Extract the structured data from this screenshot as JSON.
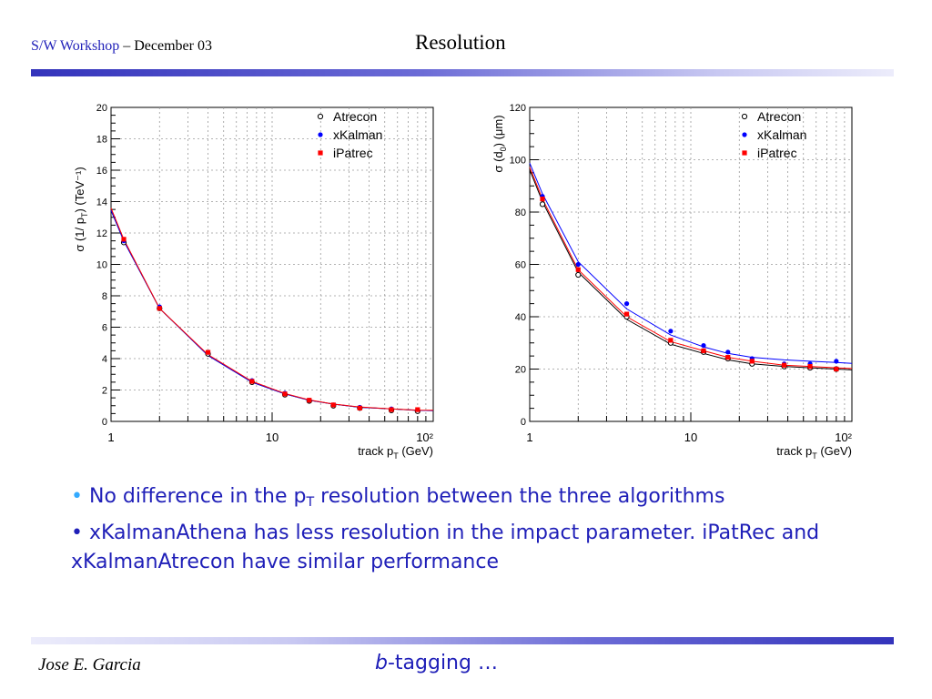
{
  "header": {
    "workshop": "S/W Workshop",
    "date": "– December 03",
    "title": "Resolution"
  },
  "chart_data": [
    {
      "type": "scatter",
      "ylabel_pre": "σ (1/ p",
      "ylabel_sub": "T",
      "ylabel_post": ") (TeV⁻¹)",
      "xlabel_pre": "track p",
      "xlabel_sub": "T",
      "xlabel_post": " (GeV)",
      "xscale": "log",
      "xlim": [
        1,
        100
      ],
      "ylim": [
        0,
        20
      ],
      "grid": true,
      "legend_position": "top-right",
      "x_ticks": [
        1,
        10,
        100
      ],
      "x_tick_labels": [
        "1",
        "10",
        "10²"
      ],
      "y_ticks": [
        0,
        2,
        4,
        6,
        8,
        10,
        12,
        14,
        16,
        18,
        20
      ],
      "y_tick_labels": [
        "0",
        "2",
        "4",
        "6",
        "8",
        "10",
        "12",
        "14",
        "16",
        "18",
        "20"
      ],
      "x": [
        1.2,
        2,
        4,
        7.5,
        12,
        17,
        24,
        35,
        55,
        80
      ],
      "series": [
        {
          "name": "Atrecon",
          "marker": "open-circle",
          "color": "#000000",
          "values": [
            11.4,
            7.2,
            4.3,
            2.5,
            1.7,
            1.3,
            1.0,
            0.85,
            0.7,
            0.65
          ],
          "fit": [
            11.5,
            7.2,
            4.2,
            2.5,
            1.75,
            1.35,
            1.1,
            0.9,
            0.8,
            0.7
          ]
        },
        {
          "name": "xKalman",
          "marker": "filled-circle",
          "color": "#0000ff",
          "values": [
            11.5,
            7.3,
            4.4,
            2.6,
            1.8,
            1.35,
            1.05,
            0.9,
            0.8,
            0.75
          ],
          "fit": [
            11.5,
            7.2,
            4.2,
            2.5,
            1.75,
            1.35,
            1.1,
            0.9,
            0.8,
            0.7
          ]
        },
        {
          "name": "iPatrec",
          "marker": "filled-square",
          "color": "#ff0000",
          "values": [
            11.6,
            7.2,
            4.4,
            2.55,
            1.75,
            1.35,
            1.05,
            0.85,
            0.75,
            0.75
          ],
          "fit": [
            11.6,
            7.2,
            4.25,
            2.55,
            1.78,
            1.37,
            1.1,
            0.92,
            0.8,
            0.72
          ]
        }
      ]
    },
    {
      "type": "scatter",
      "ylabel_pre": "σ (d",
      "ylabel_sub": "0",
      "ylabel_post": ") (μm)",
      "xlabel_pre": "track p",
      "xlabel_sub": "T",
      "xlabel_post": " (GeV)",
      "xscale": "log",
      "xlim": [
        1,
        100
      ],
      "ylim": [
        0,
        120
      ],
      "grid": true,
      "legend_position": "top-right",
      "x_ticks": [
        1,
        10,
        100
      ],
      "x_tick_labels": [
        "1",
        "10",
        "10²"
      ],
      "y_ticks": [
        0,
        20,
        40,
        60,
        80,
        100,
        120
      ],
      "y_tick_labels": [
        "0",
        "20",
        "40",
        "60",
        "80",
        "100",
        "120"
      ],
      "x": [
        1.2,
        2,
        4,
        7.5,
        12,
        17,
        24,
        38,
        55,
        80
      ],
      "series": [
        {
          "name": "Atrecon",
          "marker": "open-circle",
          "color": "#000000",
          "values": [
            83,
            56,
            40,
            30,
            26.5,
            24,
            22,
            21,
            20.5,
            20
          ],
          "fit": [
            84,
            57,
            39,
            29.5,
            26,
            23.5,
            22,
            21,
            20.5,
            20
          ]
        },
        {
          "name": "xKalman",
          "marker": "filled-circle",
          "color": "#0000ff",
          "values": [
            86,
            60,
            45,
            34.5,
            29,
            26.5,
            24,
            22,
            22,
            23
          ],
          "fit": [
            87,
            61,
            43,
            33,
            28.5,
            26,
            24.5,
            23.5,
            23,
            22.5
          ]
        },
        {
          "name": "iPatrec",
          "marker": "filled-square",
          "color": "#ff0000",
          "values": [
            85,
            58,
            41,
            31,
            27,
            24.5,
            23,
            21.5,
            21,
            20
          ],
          "fit": [
            85,
            58,
            40,
            30.5,
            27,
            24.5,
            23,
            21.5,
            21,
            20.5
          ]
        }
      ]
    }
  ],
  "bullets": [
    {
      "pre": "No difference in the p",
      "sub": "T",
      "post": " resolution between the three algorithms"
    },
    {
      "text": "xKalmanAthena has less resolution in the impact parameter. iPatRec and xKalmanAtrecon have similar performance"
    }
  ],
  "footer": {
    "author": "Jose E. Garcia",
    "topic_b": "b",
    "topic_rest": "-tagging …"
  },
  "colors": {
    "accent_blue": "#1f1fb8",
    "bar_dark": "#3333bb"
  }
}
